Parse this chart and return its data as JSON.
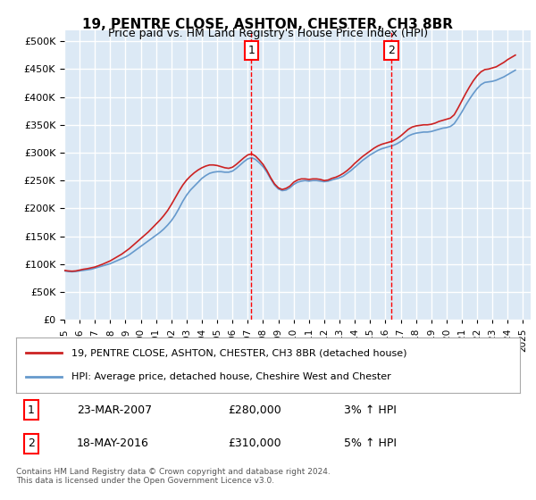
{
  "title": "19, PENTRE CLOSE, ASHTON, CHESTER, CH3 8BR",
  "subtitle": "Price paid vs. HM Land Registry's House Price Index (HPI)",
  "ylabel_ticks": [
    "£0",
    "£50K",
    "£100K",
    "£150K",
    "£200K",
    "£250K",
    "£300K",
    "£350K",
    "£400K",
    "£450K",
    "£500K"
  ],
  "ytick_values": [
    0,
    50000,
    100000,
    150000,
    200000,
    250000,
    300000,
    350000,
    400000,
    450000,
    500000
  ],
  "ylim": [
    0,
    520000
  ],
  "xlim_start": 1995.0,
  "xlim_end": 2025.5,
  "x_tick_labels": [
    "1995",
    "1996",
    "1997",
    "1998",
    "1999",
    "2000",
    "2001",
    "2002",
    "2003",
    "2004",
    "2005",
    "2006",
    "2007",
    "2008",
    "2009",
    "2010",
    "2011",
    "2012",
    "2013",
    "2014",
    "2015",
    "2016",
    "2017",
    "2018",
    "2019",
    "2020",
    "2021",
    "2022",
    "2023",
    "2024",
    "2025"
  ],
  "background_color": "#dce9f5",
  "plot_bg_color": "#dce9f5",
  "grid_color": "#ffffff",
  "hpi_color": "#6699cc",
  "price_color": "#cc2222",
  "sale1_x": 2007.23,
  "sale1_y": 280000,
  "sale2_x": 2016.38,
  "sale2_y": 310000,
  "legend_line1": "19, PENTRE CLOSE, ASHTON, CHESTER, CH3 8BR (detached house)",
  "legend_line2": "HPI: Average price, detached house, Cheshire West and Chester",
  "table_row1_num": "1",
  "table_row1_date": "23-MAR-2007",
  "table_row1_price": "£280,000",
  "table_row1_hpi": "3% ↑ HPI",
  "table_row2_num": "2",
  "table_row2_date": "18-MAY-2016",
  "table_row2_price": "£310,000",
  "table_row2_hpi": "5% ↑ HPI",
  "footnote": "Contains HM Land Registry data © Crown copyright and database right 2024.\nThis data is licensed under the Open Government Licence v3.0.",
  "hpi_data_x": [
    1995.0,
    1995.25,
    1995.5,
    1995.75,
    1996.0,
    1996.25,
    1996.5,
    1996.75,
    1997.0,
    1997.25,
    1997.5,
    1997.75,
    1998.0,
    1998.25,
    1998.5,
    1998.75,
    1999.0,
    1999.25,
    1999.5,
    1999.75,
    2000.0,
    2000.25,
    2000.5,
    2000.75,
    2001.0,
    2001.25,
    2001.5,
    2001.75,
    2002.0,
    2002.25,
    2002.5,
    2002.75,
    2003.0,
    2003.25,
    2003.5,
    2003.75,
    2004.0,
    2004.25,
    2004.5,
    2004.75,
    2005.0,
    2005.25,
    2005.5,
    2005.75,
    2006.0,
    2006.25,
    2006.5,
    2006.75,
    2007.0,
    2007.25,
    2007.5,
    2007.75,
    2008.0,
    2008.25,
    2008.5,
    2008.75,
    2009.0,
    2009.25,
    2009.5,
    2009.75,
    2010.0,
    2010.25,
    2010.5,
    2010.75,
    2011.0,
    2011.25,
    2011.5,
    2011.75,
    2012.0,
    2012.25,
    2012.5,
    2012.75,
    2013.0,
    2013.25,
    2013.5,
    2013.75,
    2014.0,
    2014.25,
    2014.5,
    2014.75,
    2015.0,
    2015.25,
    2015.5,
    2015.75,
    2016.0,
    2016.25,
    2016.5,
    2016.75,
    2017.0,
    2017.25,
    2017.5,
    2017.75,
    2018.0,
    2018.25,
    2018.5,
    2018.75,
    2019.0,
    2019.25,
    2019.5,
    2019.75,
    2020.0,
    2020.25,
    2020.5,
    2020.75,
    2021.0,
    2021.25,
    2021.5,
    2021.75,
    2022.0,
    2022.25,
    2022.5,
    2022.75,
    2023.0,
    2023.25,
    2023.5,
    2023.75,
    2024.0,
    2024.25,
    2024.5
  ],
  "hpi_data_y": [
    88000,
    87000,
    86500,
    87000,
    88000,
    89000,
    90000,
    91000,
    93000,
    95000,
    97000,
    99000,
    101000,
    104000,
    107000,
    110000,
    113000,
    117000,
    122000,
    127000,
    132000,
    137000,
    142000,
    147000,
    152000,
    157000,
    163000,
    170000,
    178000,
    188000,
    200000,
    213000,
    224000,
    233000,
    240000,
    247000,
    254000,
    259000,
    263000,
    265000,
    266000,
    266000,
    265000,
    265000,
    267000,
    272000,
    278000,
    284000,
    289000,
    291000,
    288000,
    282000,
    275000,
    265000,
    253000,
    242000,
    235000,
    232000,
    233000,
    237000,
    243000,
    247000,
    249000,
    250000,
    249000,
    250000,
    250000,
    249000,
    248000,
    249000,
    251000,
    253000,
    255000,
    258000,
    263000,
    268000,
    274000,
    280000,
    286000,
    291000,
    296000,
    300000,
    304000,
    307000,
    309000,
    311000,
    313000,
    316000,
    320000,
    325000,
    330000,
    333000,
    335000,
    336000,
    337000,
    337000,
    338000,
    340000,
    342000,
    344000,
    345000,
    347000,
    352000,
    362000,
    373000,
    385000,
    396000,
    406000,
    415000,
    422000,
    426000,
    427000,
    428000,
    430000,
    433000,
    436000,
    440000,
    444000,
    448000
  ],
  "price_data_x": [
    1995.0,
    1995.25,
    1995.5,
    1995.75,
    1996.0,
    1996.25,
    1996.5,
    1996.75,
    1997.0,
    1997.25,
    1997.5,
    1997.75,
    1998.0,
    1998.25,
    1998.5,
    1998.75,
    1999.0,
    1999.25,
    1999.5,
    1999.75,
    2000.0,
    2000.25,
    2000.5,
    2000.75,
    2001.0,
    2001.25,
    2001.5,
    2001.75,
    2002.0,
    2002.25,
    2002.5,
    2002.75,
    2003.0,
    2003.25,
    2003.5,
    2003.75,
    2004.0,
    2004.25,
    2004.5,
    2004.75,
    2005.0,
    2005.25,
    2005.5,
    2005.75,
    2006.0,
    2006.25,
    2006.5,
    2006.75,
    2007.0,
    2007.25,
    2007.5,
    2007.75,
    2008.0,
    2008.25,
    2008.5,
    2008.75,
    2009.0,
    2009.25,
    2009.5,
    2009.75,
    2010.0,
    2010.25,
    2010.5,
    2010.75,
    2011.0,
    2011.25,
    2011.5,
    2011.75,
    2012.0,
    2012.25,
    2012.5,
    2012.75,
    2013.0,
    2013.25,
    2013.5,
    2013.75,
    2014.0,
    2014.25,
    2014.5,
    2014.75,
    2015.0,
    2015.25,
    2015.5,
    2015.75,
    2016.0,
    2016.25,
    2016.5,
    2016.75,
    2017.0,
    2017.25,
    2017.5,
    2017.75,
    2018.0,
    2018.25,
    2018.5,
    2018.75,
    2019.0,
    2019.25,
    2019.5,
    2019.75,
    2020.0,
    2020.25,
    2020.5,
    2020.75,
    2021.0,
    2021.25,
    2021.5,
    2021.75,
    2022.0,
    2022.25,
    2022.5,
    2022.75,
    2023.0,
    2023.25,
    2023.5,
    2023.75,
    2024.0,
    2024.25,
    2024.5
  ],
  "price_data_y": [
    89000,
    88000,
    87500,
    88000,
    89500,
    91000,
    92000,
    93500,
    95000,
    97500,
    100000,
    103000,
    106000,
    110000,
    114000,
    118000,
    123000,
    128000,
    134000,
    140000,
    146000,
    152000,
    158000,
    165000,
    172000,
    179000,
    187000,
    196000,
    207000,
    219000,
    231000,
    242000,
    251000,
    258000,
    264000,
    269000,
    273000,
    276000,
    278000,
    278000,
    277000,
    275000,
    273000,
    272000,
    274000,
    279000,
    285000,
    291000,
    296000,
    298000,
    294000,
    287000,
    279000,
    268000,
    255000,
    244000,
    237000,
    234000,
    236000,
    240000,
    247000,
    251000,
    253000,
    253000,
    252000,
    253000,
    253000,
    252000,
    250000,
    251000,
    254000,
    256000,
    259000,
    263000,
    268000,
    274000,
    281000,
    287000,
    293000,
    298000,
    303000,
    308000,
    312000,
    315000,
    317000,
    319000,
    321000,
    325000,
    330000,
    336000,
    342000,
    346000,
    348000,
    349000,
    350000,
    350000,
    351000,
    353000,
    356000,
    358000,
    360000,
    362000,
    368000,
    380000,
    393000,
    406000,
    418000,
    429000,
    438000,
    445000,
    449000,
    450000,
    452000,
    454000,
    458000,
    462000,
    467000,
    471000,
    475000
  ]
}
